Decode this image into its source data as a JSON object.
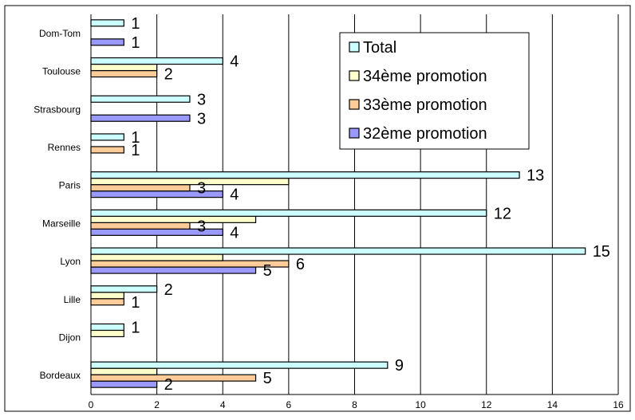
{
  "chart_data": {
    "type": "bar",
    "orientation": "horizontal",
    "categories": [
      "Bordeaux",
      "Dijon",
      "Lille",
      "Lyon",
      "Marseille",
      "Paris",
      "Rennes",
      "Strasbourg",
      "Toulouse",
      "Dom-Tom"
    ],
    "series": [
      {
        "name": "32ème promotion",
        "color": "#9999ff",
        "values": [
          2,
          null,
          null,
          5,
          4,
          4,
          null,
          3,
          null,
          1
        ]
      },
      {
        "name": "33ème promotion",
        "color": "#ffcc99",
        "values": [
          5,
          null,
          1,
          6,
          3,
          3,
          1,
          null,
          2,
          null
        ]
      },
      {
        "name": "34ème promotion",
        "color": "#ffffcc",
        "values": [
          2,
          1,
          1,
          4,
          5,
          6,
          null,
          null,
          2,
          null
        ]
      },
      {
        "name": "Total",
        "color": "#ccffff",
        "values": [
          9,
          1,
          2,
          15,
          12,
          13,
          1,
          3,
          4,
          1
        ]
      }
    ],
    "data_labels": [
      {
        "category": "Bordeaux",
        "series": "Total",
        "text": "9"
      },
      {
        "category": "Bordeaux",
        "series": "33ème promotion",
        "text": "5"
      },
      {
        "category": "Bordeaux",
        "series": "32ème promotion",
        "text": "2"
      },
      {
        "category": "Dijon",
        "series": "Total",
        "text": "1"
      },
      {
        "category": "Lille",
        "series": "Total",
        "text": "2"
      },
      {
        "category": "Lille",
        "series": "33ème promotion",
        "text": "1"
      },
      {
        "category": "Lyon",
        "series": "Total",
        "text": "15"
      },
      {
        "category": "Lyon",
        "series": "33ème promotion",
        "text": "6"
      },
      {
        "category": "Lyon",
        "series": "32ème promotion",
        "text": "5"
      },
      {
        "category": "Marseille",
        "series": "Total",
        "text": "12"
      },
      {
        "category": "Marseille",
        "series": "33ème promotion",
        "text": "3"
      },
      {
        "category": "Marseille",
        "series": "32ème promotion",
        "text": "4"
      },
      {
        "category": "Paris",
        "series": "Total",
        "text": "13"
      },
      {
        "category": "Paris",
        "series": "33ème promotion",
        "text": "3"
      },
      {
        "category": "Paris",
        "series": "32ème promotion",
        "text": "4"
      },
      {
        "category": "Rennes",
        "series": "Total",
        "text": "1"
      },
      {
        "category": "Rennes",
        "series": "33ème promotion",
        "text": "1"
      },
      {
        "category": "Strasbourg",
        "series": "Total",
        "text": "3"
      },
      {
        "category": "Strasbourg",
        "series": "32ème promotion",
        "text": "3"
      },
      {
        "category": "Toulouse",
        "series": "Total",
        "text": "4"
      },
      {
        "category": "Toulouse",
        "series": "33ème promotion",
        "text": "2"
      },
      {
        "category": "Dom-Tom",
        "series": "Total",
        "text": "1"
      },
      {
        "category": "Dom-Tom",
        "series": "32ème promotion",
        "text": "1"
      }
    ],
    "xlim": [
      0,
      16
    ],
    "xticks": [
      0,
      2,
      4,
      6,
      8,
      10,
      12,
      14,
      16
    ],
    "grid": "vertical",
    "legend": {
      "placement": "top-right",
      "entries": [
        {
          "name": "Total",
          "color": "#ccffff"
        },
        {
          "name": "34ème promotion",
          "color": "#ffffcc"
        },
        {
          "name": "33ème promotion",
          "color": "#ffcc99"
        },
        {
          "name": "32ème promotion",
          "color": "#9999ff"
        }
      ]
    }
  }
}
